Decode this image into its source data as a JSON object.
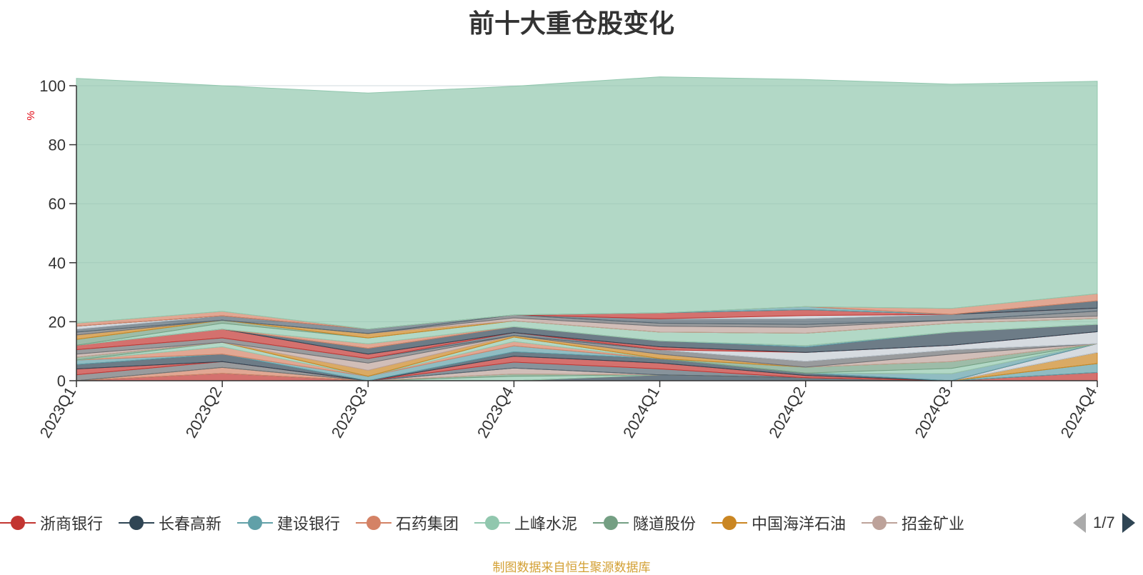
{
  "title": "前十大重仓股变化",
  "source_note": "制图数据来自恒生聚源数据库",
  "legend": {
    "items": [
      {
        "name": "浙商银行",
        "color": "#c23531"
      },
      {
        "name": "长春高新",
        "color": "#2f4554"
      },
      {
        "name": "建设银行",
        "color": "#61a0a8"
      },
      {
        "name": "石药集团",
        "color": "#d48265"
      },
      {
        "name": "上峰水泥",
        "color": "#91c7ae"
      },
      {
        "name": "隧道股份",
        "color": "#749f83"
      },
      {
        "name": "中国海洋石油",
        "color": "#ca8622"
      },
      {
        "name": "招金矿业",
        "color": "#bda29a"
      }
    ],
    "page_text": "1/7"
  },
  "chart_data": {
    "type": "area",
    "stacked": true,
    "title": "前十大重仓股变化",
    "ylabel": "%",
    "xlabel": "",
    "categories": [
      "2023Q1",
      "2023Q2",
      "2023Q3",
      "2023Q4",
      "2024Q1",
      "2024Q2",
      "2024Q3",
      "2024Q4"
    ],
    "ylim": [
      0,
      100
    ],
    "yticks": [
      0,
      20,
      40,
      60,
      80,
      100
    ],
    "grid": true,
    "series": [
      {
        "name": "浙商银行",
        "color": "#c23531",
        "values": [
          0,
          2.5,
          0,
          0,
          0,
          0,
          0,
          2.8
        ]
      },
      {
        "name": "长春高新",
        "color": "#2f4554",
        "values": [
          0,
          0,
          0,
          0,
          2,
          1,
          0,
          0
        ]
      },
      {
        "name": "建设银行",
        "color": "#61a0a8",
        "values": [
          0,
          0,
          0,
          0,
          0,
          0,
          0,
          3
        ]
      },
      {
        "name": "石药集团",
        "color": "#d48265",
        "values": [
          0,
          2,
          0,
          0,
          0,
          0,
          0,
          0
        ]
      },
      {
        "name": "上峰水泥",
        "color": "#91c7ae",
        "values": [
          0,
          0,
          0,
          1.5,
          0,
          0,
          0,
          0
        ]
      },
      {
        "name": "隧道股份",
        "color": "#749f83",
        "values": [
          0,
          0,
          0,
          0.8,
          0,
          0,
          0,
          0
        ]
      },
      {
        "name": "中国海洋石油",
        "color": "#ca8622",
        "values": [
          0,
          0,
          0,
          0,
          0,
          0,
          0,
          3.8
        ]
      },
      {
        "name": "招金矿业",
        "color": "#bda29a",
        "values": [
          0,
          0,
          0,
          2,
          0,
          0,
          0,
          0
        ]
      },
      {
        "color": "#6e7074",
        "values": [
          2,
          2,
          0,
          0,
          0,
          0,
          0,
          0
        ]
      },
      {
        "color": "#546570",
        "values": [
          0,
          0,
          0,
          2,
          2,
          0,
          0,
          0
        ]
      },
      {
        "color": "#c4ccd3",
        "values": [
          0,
          0,
          0,
          0,
          0,
          0,
          0,
          3
        ]
      },
      {
        "color": "#c23531",
        "values": [
          2,
          0,
          0,
          2,
          2,
          0.8,
          0,
          0
        ]
      },
      {
        "color": "#2f4554",
        "values": [
          1.5,
          2.5,
          0,
          1.5,
          1.5,
          0.8,
          0,
          0
        ]
      },
      {
        "color": "#61a0a8",
        "values": [
          1.5,
          0,
          1.5,
          2,
          0,
          0,
          2.4,
          0
        ]
      },
      {
        "color": "#d48265",
        "values": [
          0,
          2.5,
          0,
          1.5,
          0,
          0,
          0,
          0
        ]
      },
      {
        "color": "#91c7ae",
        "values": [
          0,
          1.5,
          0,
          1.5,
          0,
          0,
          1.8,
          0
        ]
      },
      {
        "color": "#749f83",
        "values": [
          1,
          0,
          0,
          0,
          0,
          2,
          2.3,
          0
        ]
      },
      {
        "color": "#ca8622",
        "values": [
          0,
          0,
          2,
          0.5,
          1.5,
          0,
          0,
          0
        ]
      },
      {
        "color": "#bda29a",
        "values": [
          1,
          0,
          2.5,
          0,
          0,
          0,
          2.5,
          0
        ]
      },
      {
        "color": "#6e7074",
        "values": [
          1.5,
          1.5,
          1.5,
          0,
          1.5,
          2,
          1.5,
          0
        ]
      },
      {
        "color": "#546570",
        "values": [
          0,
          0,
          0,
          1,
          0,
          0,
          0,
          0
        ]
      },
      {
        "color": "#c4ccd3",
        "values": [
          0,
          0,
          0,
          0,
          0,
          3,
          1.5,
          4
        ]
      },
      {
        "color": "#c23531",
        "values": [
          1.5,
          3,
          1.5,
          0,
          1,
          0,
          0,
          0
        ]
      },
      {
        "color": "#2f4554",
        "values": [
          0,
          0,
          2,
          2,
          2,
          1.8,
          4.5,
          2.5
        ]
      },
      {
        "color": "#61a0a8",
        "values": [
          0,
          0,
          0,
          0,
          0,
          0.5,
          0,
          0
        ]
      },
      {
        "color": "#d48265",
        "values": [
          0,
          0,
          1.5,
          0,
          0,
          0,
          0,
          0
        ]
      },
      {
        "color": "#91c7ae",
        "values": [
          0,
          2,
          2,
          2,
          3,
          4.2,
          3,
          2
        ]
      },
      {
        "color": "#749f83",
        "values": [
          2,
          1,
          0,
          0,
          0,
          0,
          0,
          0
        ]
      },
      {
        "color": "#ca8622",
        "values": [
          1.5,
          0,
          1.5,
          0,
          0,
          0,
          0,
          0
        ]
      },
      {
        "color": "#bda29a",
        "values": [
          0,
          0,
          0,
          1,
          2,
          2,
          1,
          0.8
        ]
      },
      {
        "color": "#6e7074",
        "values": [
          1,
          0,
          0,
          1,
          1,
          1,
          0,
          1.7
        ]
      },
      {
        "color": "#546570",
        "values": [
          1,
          1.5,
          1.5,
          0,
          1.5,
          2,
          2,
          1
        ]
      },
      {
        "color": "#c4ccd3",
        "values": [
          1,
          0,
          0,
          0,
          0,
          1,
          0,
          0
        ]
      },
      {
        "color": "#c23531",
        "values": [
          0,
          0,
          0,
          0,
          2,
          2,
          0,
          0
        ]
      },
      {
        "color": "#2f4554",
        "values": [
          0,
          0,
          0,
          0,
          0,
          0,
          0,
          2.5
        ]
      },
      {
        "color": "#61a0a8",
        "values": [
          0,
          0,
          0,
          0,
          0,
          1,
          0,
          0
        ]
      },
      {
        "color": "#d48265",
        "values": [
          1,
          1.5,
          0,
          0,
          0,
          0,
          2,
          2.4
        ]
      },
      {
        "color": "#91c7ae",
        "values": [
          83,
          76.5,
          80,
          77.5,
          80,
          77,
          76,
          72
        ]
      }
    ]
  }
}
